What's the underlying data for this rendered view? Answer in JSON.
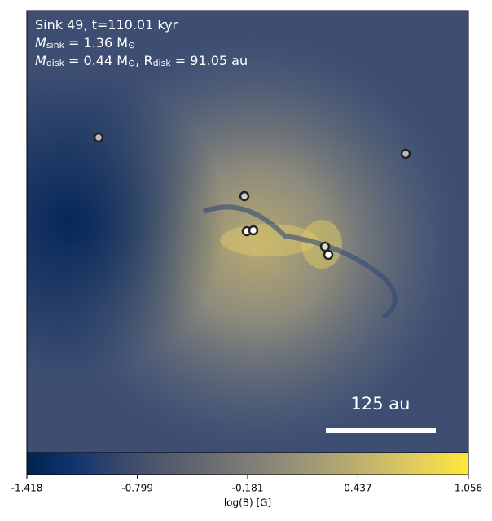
{
  "chart_data": {
    "type": "image",
    "annotation_lines": [
      [
        "Sink 49, t=110.01 kyr"
      ],
      [
        "M",
        "sink",
        " = 1.36 M",
        "⊙"
      ],
      [
        "M",
        "disk",
        " = 0.44 M",
        "⊙",
        ", R",
        "disk",
        " = 91.05 au"
      ]
    ],
    "scale_bar_label": "125 au",
    "colorbar_label": "log(B) [G]",
    "clim": [
      -1.418,
      1.056
    ],
    "cticks": [
      -1.418,
      -0.799,
      -0.181,
      0.437,
      1.056
    ],
    "colormap": [
      "#00224e",
      "#123570",
      "#3b496c",
      "#575d6d",
      "#707173",
      "#8a8779",
      "#a69d75",
      "#c4b56c",
      "#e4cf5b",
      "#fee838"
    ]
  }
}
